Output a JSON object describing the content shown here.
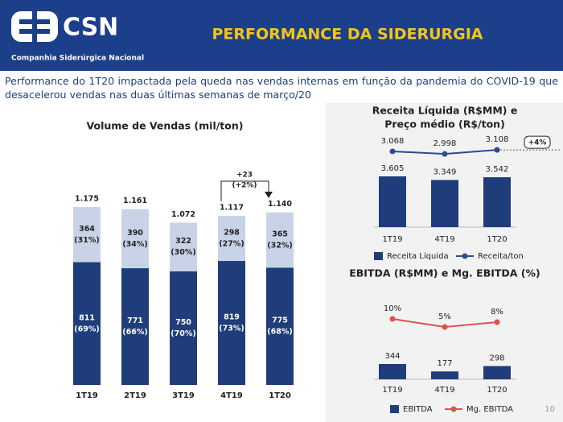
{
  "header": {
    "logo": "CSN",
    "company": "Companhia Siderúrgica Nacional",
    "title": "PERFORMANCE DA SIDERURGIA"
  },
  "subtitle": "Performance do 1T20 impactada pela queda nas vendas internas em função da pandemia do COVID-19 que desacelerou vendas nas duas últimas semanas de março/20",
  "page_number": "10",
  "chart_data": [
    {
      "type": "stacked",
      "title": [
        "Volume de Vendas (mil/ton)"
      ],
      "categories": [
        "1T19",
        "2T19",
        "3T19",
        "4T19",
        "1T20"
      ],
      "series": [
        {
          "color": "#1f3d7a",
          "values": [
            811,
            771,
            750,
            819,
            775
          ],
          "percent_labels": [
            "(69%)",
            "(66%)",
            "(70%)",
            "(73%)",
            "(68%)"
          ]
        },
        {
          "color": "#c9d3e8",
          "values": [
            364,
            390,
            322,
            298,
            365
          ],
          "percent_labels": [
            "(31%)",
            "(34%)",
            "(30%)",
            "(27%)",
            "(32%)"
          ]
        }
      ],
      "totals": {
        "values": [
          1175,
          1161,
          1072,
          1117,
          1140
        ],
        "value_labels": [
          "1.175",
          "1.161",
          "1.072",
          "1.117",
          "1.140"
        ]
      },
      "annotation": [
        "+23",
        "(+2%)"
      ]
    },
    {
      "type": "combo",
      "title": [
        "Receita Líquida (R$MM) e",
        "Preço médio (R$/ton)"
      ],
      "categories": [
        "1T19",
        "4T19",
        "1T20"
      ],
      "series": [
        {
          "name": "Receita Líquida",
          "type": "bar",
          "color": "#1f3d7a",
          "values": [
            3605,
            3349,
            3542
          ],
          "value_labels": [
            "3.605",
            "3.349",
            "3.542"
          ]
        },
        {
          "name": "Receita/ton",
          "type": "line",
          "color": "#2b4d8f",
          "values": [
            3068,
            2998,
            3108
          ],
          "value_labels": [
            "3.068",
            "2.998",
            "3.108"
          ]
        }
      ],
      "annotation": [
        "+4%"
      ]
    },
    {
      "type": "combo",
      "title": [
        "EBITDA (R$MM) e Mg. EBITDA (%)"
      ],
      "categories": [
        "1T19",
        "4T19",
        "1T20"
      ],
      "series": [
        {
          "name": "EBITDA",
          "type": "bar",
          "color": "#1f3d7a",
          "values": [
            344,
            177,
            298
          ]
        },
        {
          "name": "Mg. EBITDA",
          "type": "line",
          "color": "#d9534f",
          "values": [
            10,
            5,
            8
          ],
          "value_labels": [
            "10%",
            "5%",
            "8%"
          ]
        }
      ]
    }
  ]
}
